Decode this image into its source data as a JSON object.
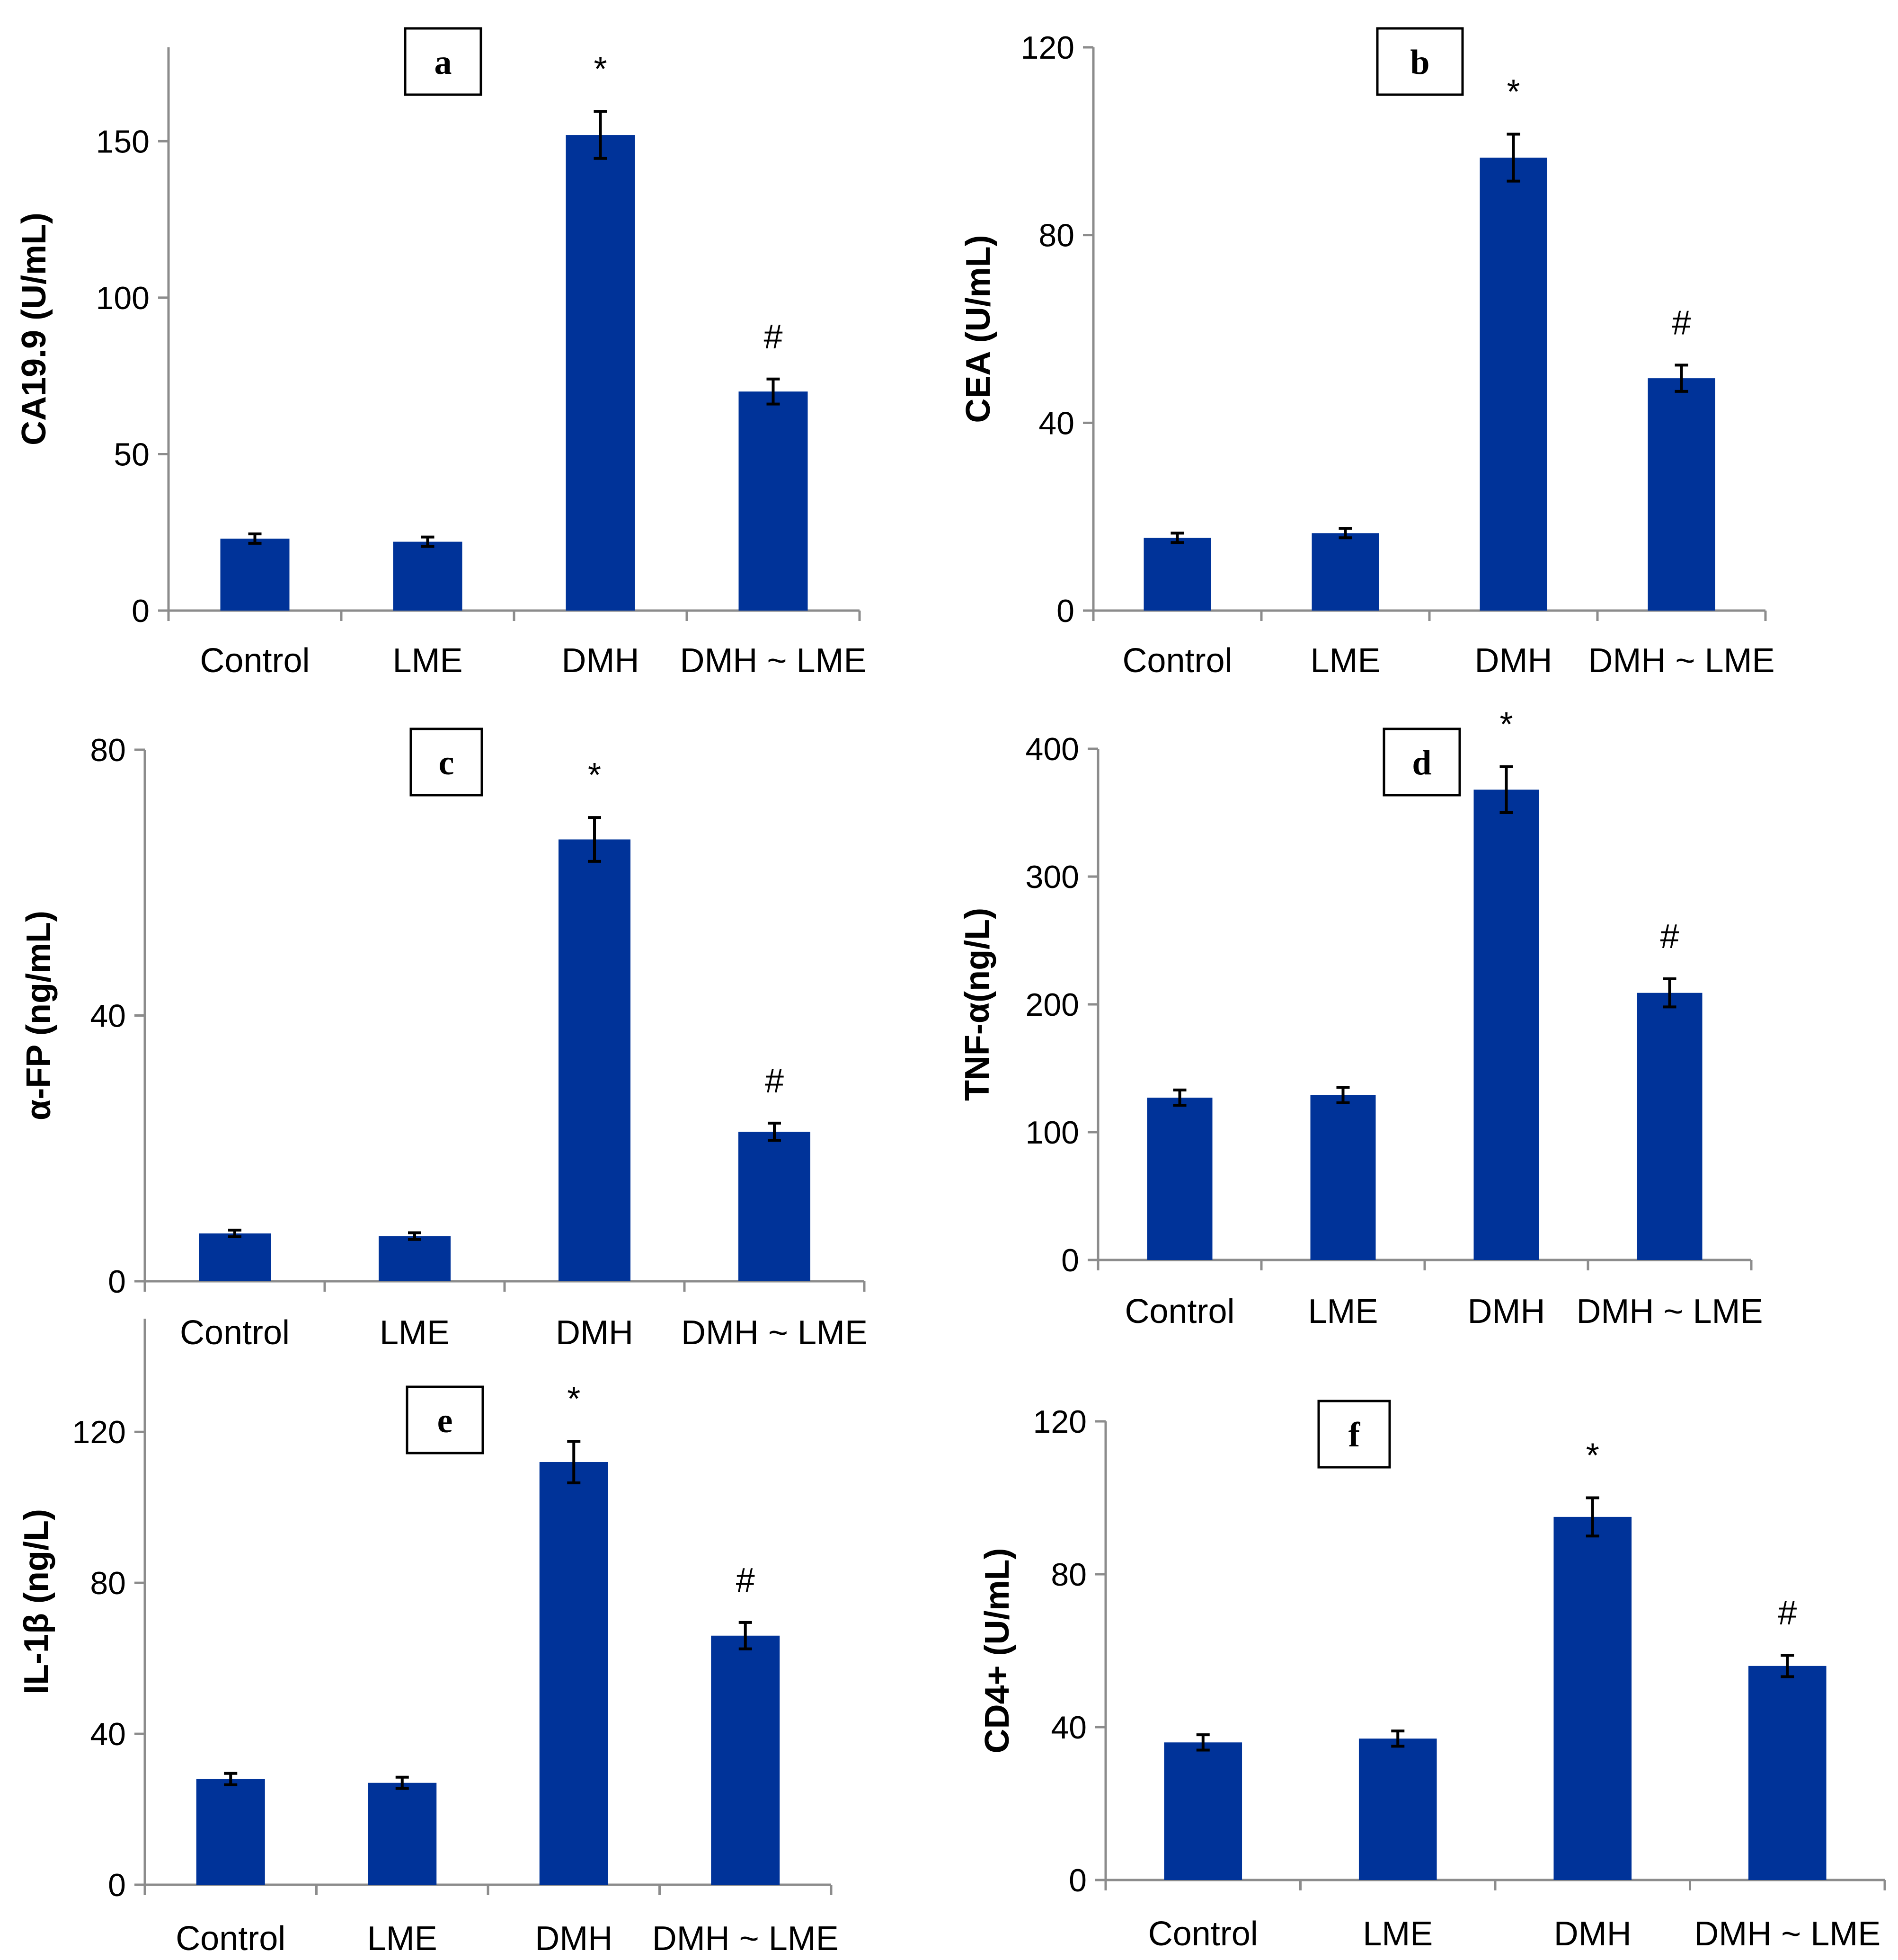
{
  "figure": {
    "bar_color": "#003399",
    "axis_color": "#8c8c8c"
  },
  "chart_data": [
    {
      "type": "bar",
      "panel": "a",
      "categories": [
        "Control",
        "LME",
        "DMH",
        "DMH ~ LME"
      ],
      "values": [
        23,
        22,
        152,
        70
      ],
      "errors": [
        1.5,
        1.5,
        7.5,
        4
      ],
      "significance": [
        "",
        "",
        "*",
        "#"
      ],
      "ylabel": "CA19.9 (U/mL)",
      "ylim": [
        0,
        180
      ],
      "yticks": [
        0,
        50,
        100,
        150
      ],
      "ytick_labels": [
        "0",
        "50",
        "100",
        "150"
      ]
    },
    {
      "type": "bar",
      "panel": "b",
      "categories": [
        "Control",
        "LME",
        "DMH",
        "DMH ~ LME"
      ],
      "values": [
        15.5,
        16.5,
        96.5,
        49.5
      ],
      "errors": [
        1,
        1,
        5,
        2.8
      ],
      "significance": [
        "",
        "",
        "*",
        "#"
      ],
      "ylabel": "CEA (U/mL)",
      "ylim": [
        0,
        120
      ],
      "yticks": [
        0,
        40,
        80,
        120
      ],
      "ytick_labels": [
        "0",
        "40",
        "80",
        "120"
      ]
    },
    {
      "type": "bar",
      "panel": "c",
      "categories": [
        "Control",
        "LME",
        "DMH",
        "DMH ~ LME"
      ],
      "values": [
        7.2,
        6.8,
        66.5,
        22.5
      ],
      "errors": [
        0.5,
        0.5,
        3.3,
        1.3
      ],
      "significance": [
        "",
        "",
        "*",
        "#"
      ],
      "ylabel": "α-FP (ng/mL)",
      "ylim": [
        0,
        80
      ],
      "yticks": [
        0,
        40,
        80
      ],
      "ytick_labels": [
        "0",
        "40",
        "80"
      ]
    },
    {
      "type": "bar",
      "panel": "d",
      "categories": [
        "Control",
        "LME",
        "DMH",
        "DMH ~ LME"
      ],
      "values": [
        127,
        129,
        368,
        209
      ],
      "errors": [
        6,
        6,
        18,
        11
      ],
      "significance": [
        "",
        "",
        "*",
        "#"
      ],
      "ylabel": "TNF-α(ng/L)",
      "ylim": [
        0,
        400
      ],
      "yticks": [
        0,
        100,
        200,
        300,
        400
      ],
      "ytick_labels": [
        "0",
        "100",
        "200",
        "300",
        "400"
      ]
    },
    {
      "type": "bar",
      "panel": "e",
      "categories": [
        "Control",
        "LME",
        "DMH",
        "DMH ~ LME"
      ],
      "values": [
        28,
        27,
        112,
        66
      ],
      "errors": [
        1.5,
        1.5,
        5.5,
        3.5
      ],
      "significance": [
        "",
        "",
        "*",
        "#"
      ],
      "ylabel": "IL-1β (ng/L)",
      "ylim": [
        0,
        150
      ],
      "yticks": [
        0,
        40,
        80,
        120
      ],
      "ytick_labels": [
        "0",
        "40",
        "80",
        "120"
      ]
    },
    {
      "type": "bar",
      "panel": "f",
      "categories": [
        "Control",
        "LME",
        "DMH",
        "DMH ~ LME"
      ],
      "values": [
        36,
        37,
        95,
        56
      ],
      "errors": [
        2,
        2,
        5,
        2.8
      ],
      "significance": [
        "",
        "",
        "*",
        "#"
      ],
      "ylabel": "CD4+ (U/mL)",
      "ylim": [
        0,
        120
      ],
      "yticks": [
        0,
        40,
        80,
        120
      ],
      "ytick_labels": [
        "0",
        "40",
        "80",
        "120"
      ]
    }
  ]
}
